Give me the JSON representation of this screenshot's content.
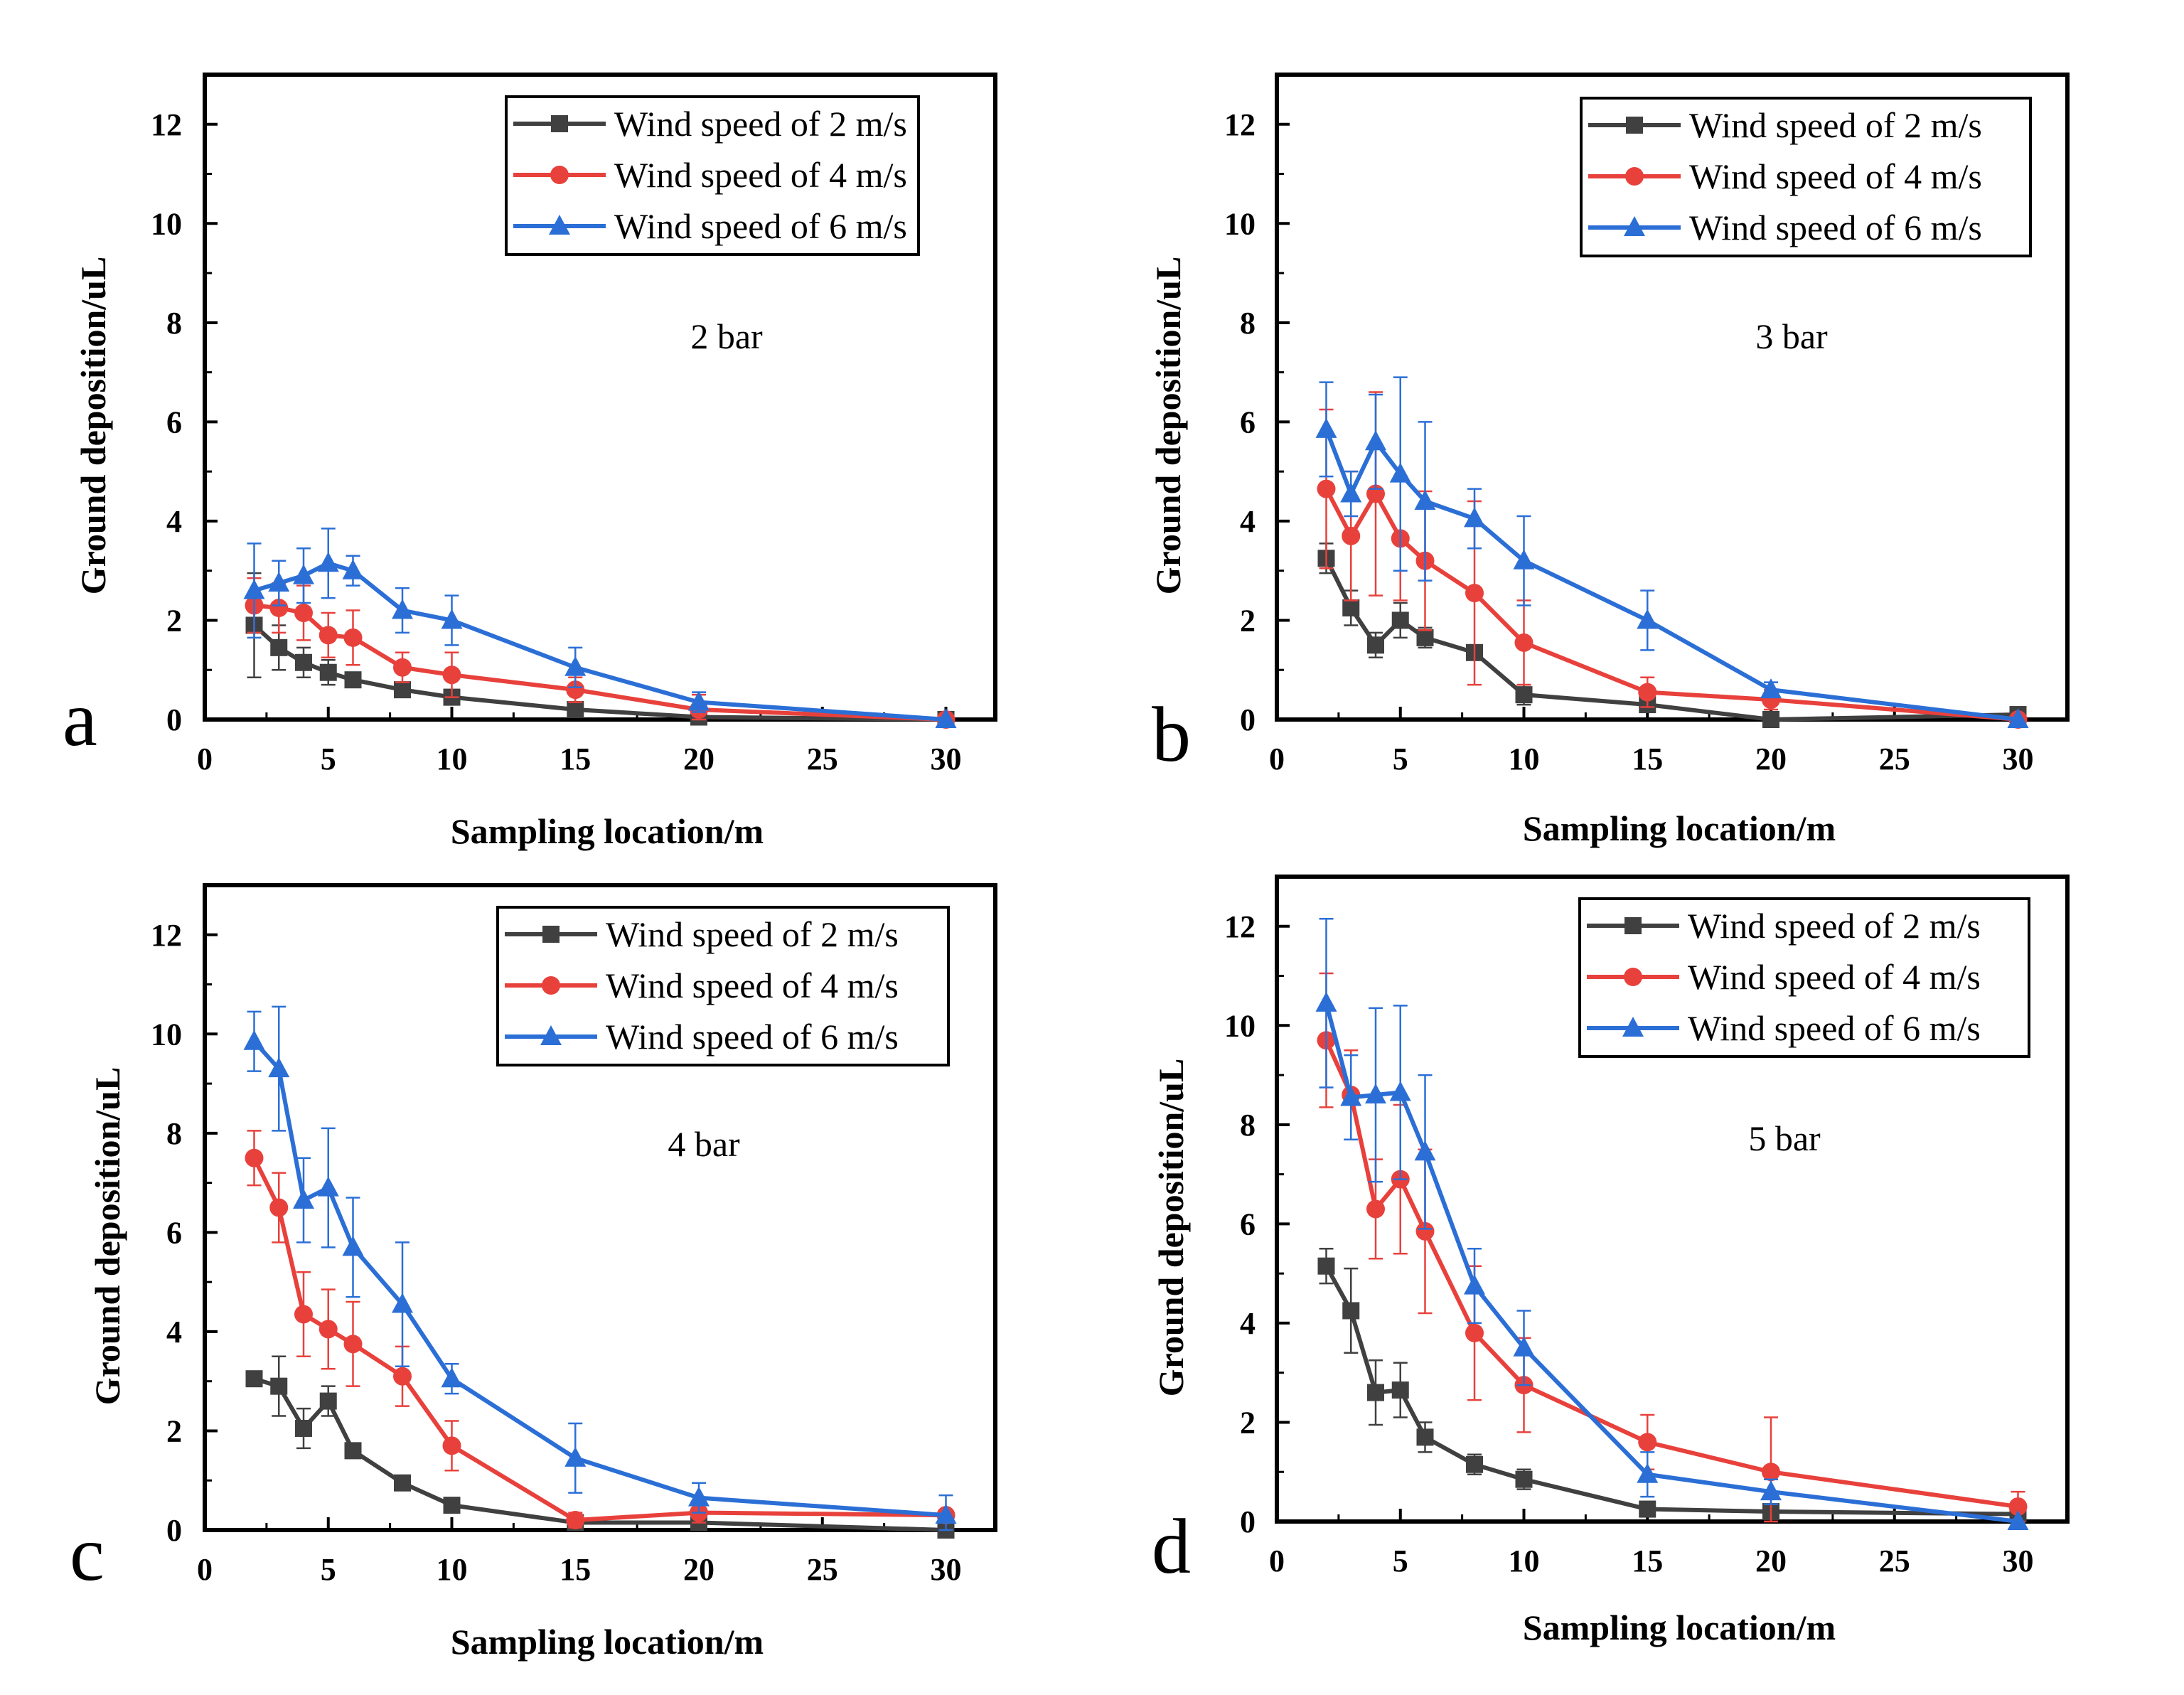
{
  "chart_data": [
    {
      "type": "line",
      "panel_label": "a",
      "annotation": "2 bar",
      "xlabel": "Sampling location/m",
      "ylabel": "Ground deposition/uL",
      "xlim": [
        0,
        32
      ],
      "ylim": [
        0,
        13
      ],
      "xticks": [
        0,
        5,
        10,
        15,
        20,
        25,
        30
      ],
      "yticks": [
        0,
        2,
        4,
        6,
        8,
        10,
        12
      ],
      "legend_position": "top-right",
      "series": [
        {
          "name": "Wind speed of 2 m/s",
          "color": "#404040",
          "marker": "square",
          "x": [
            2,
            3,
            4,
            5,
            6,
            8,
            10,
            15,
            20,
            30
          ],
          "y": [
            1.9,
            1.45,
            1.15,
            0.95,
            0.8,
            0.6,
            0.45,
            0.2,
            0.05,
            0.0
          ],
          "err": [
            1.05,
            0.45,
            0.3,
            0.25,
            0.15,
            0.15,
            0.15,
            0.1,
            0.05,
            0.0
          ]
        },
        {
          "name": "Wind speed of 4 m/s",
          "color": "#e8413c",
          "marker": "circle",
          "x": [
            2,
            3,
            4,
            5,
            6,
            8,
            10,
            15,
            20,
            30
          ],
          "y": [
            2.3,
            2.25,
            2.15,
            1.7,
            1.65,
            1.05,
            0.9,
            0.6,
            0.2,
            0.0
          ],
          "err": [
            0.55,
            0.5,
            0.55,
            0.45,
            0.55,
            0.3,
            0.45,
            0.25,
            0.3,
            0.05
          ]
        },
        {
          "name": "Wind speed of 6 m/s",
          "color": "#2b6fd6",
          "marker": "triangle",
          "x": [
            2,
            3,
            4,
            5,
            6,
            8,
            10,
            15,
            20,
            30
          ],
          "y": [
            2.6,
            2.75,
            2.9,
            3.15,
            3.0,
            2.2,
            2.0,
            1.05,
            0.35,
            0.0
          ],
          "err": [
            0.95,
            0.45,
            0.55,
            0.7,
            0.3,
            0.45,
            0.5,
            0.4,
            0.2,
            0.0
          ]
        }
      ]
    },
    {
      "type": "line",
      "panel_label": "b",
      "annotation": "3 bar",
      "xlabel": "Sampling location/m",
      "ylabel": "Ground deposition/uL",
      "xlim": [
        0,
        32
      ],
      "ylim": [
        0,
        13
      ],
      "xticks": [
        0,
        5,
        10,
        15,
        20,
        25,
        30
      ],
      "yticks": [
        0,
        2,
        4,
        6,
        8,
        10,
        12
      ],
      "legend_position": "top-right",
      "series": [
        {
          "name": "Wind speed of 2 m/s",
          "color": "#404040",
          "marker": "square",
          "x": [
            2,
            3,
            4,
            5,
            6,
            8,
            10,
            15,
            20,
            30
          ],
          "y": [
            3.25,
            2.25,
            1.5,
            2.0,
            1.65,
            1.35,
            0.5,
            0.3,
            0.0,
            0.1
          ],
          "err": [
            0.3,
            0.35,
            0.25,
            0.35,
            0.2,
            0.15,
            0.2,
            0.1,
            0.0,
            0.05
          ]
        },
        {
          "name": "Wind speed of 4 m/s",
          "color": "#e8413c",
          "marker": "circle",
          "x": [
            2,
            3,
            4,
            5,
            6,
            8,
            10,
            15,
            20,
            30
          ],
          "y": [
            4.65,
            3.7,
            4.55,
            3.65,
            3.2,
            2.55,
            1.55,
            0.55,
            0.4,
            0.0
          ],
          "err": [
            1.6,
            1.3,
            2.05,
            1.25,
            1.4,
            1.85,
            0.85,
            0.3,
            0.2,
            0.05
          ]
        },
        {
          "name": "Wind speed of 6 m/s",
          "color": "#2b6fd6",
          "marker": "triangle",
          "x": [
            2,
            3,
            4,
            5,
            6,
            8,
            10,
            15,
            20,
            30
          ],
          "y": [
            5.85,
            4.55,
            5.6,
            4.95,
            4.4,
            4.05,
            3.2,
            2.0,
            0.6,
            0.0
          ],
          "err": [
            0.95,
            0.45,
            0.95,
            1.95,
            1.6,
            0.6,
            0.9,
            0.6,
            0.15,
            0.0
          ]
        }
      ]
    },
    {
      "type": "line",
      "panel_label": "c",
      "annotation": "4 bar",
      "xlabel": "Sampling location/m",
      "ylabel": "Ground deposition/uL",
      "xlim": [
        0,
        32
      ],
      "ylim": [
        0,
        13
      ],
      "xticks": [
        0,
        5,
        10,
        15,
        20,
        25,
        30
      ],
      "yticks": [
        0,
        2,
        4,
        6,
        8,
        10,
        12
      ],
      "legend_position": "top-right",
      "series": [
        {
          "name": "Wind speed of 2 m/s",
          "color": "#404040",
          "marker": "square",
          "x": [
            2,
            3,
            4,
            5,
            6,
            8,
            10,
            15,
            20,
            30
          ],
          "y": [
            3.05,
            2.9,
            2.05,
            2.6,
            1.6,
            0.95,
            0.5,
            0.15,
            0.15,
            0.0
          ],
          "err": [
            0.15,
            0.6,
            0.4,
            0.3,
            0.15,
            0.1,
            0.1,
            0.05,
            0.1,
            0.0
          ]
        },
        {
          "name": "Wind speed of 4 m/s",
          "color": "#e8413c",
          "marker": "circle",
          "x": [
            2,
            3,
            4,
            5,
            6,
            8,
            10,
            15,
            20,
            30
          ],
          "y": [
            7.5,
            6.5,
            4.35,
            4.05,
            3.75,
            3.1,
            1.7,
            0.2,
            0.35,
            0.3
          ],
          "err": [
            0.55,
            0.7,
            0.85,
            0.8,
            0.85,
            0.6,
            0.5,
            0.15,
            0.2,
            0.1
          ]
        },
        {
          "name": "Wind speed of 6 m/s",
          "color": "#2b6fd6",
          "marker": "triangle",
          "x": [
            2,
            3,
            4,
            5,
            6,
            8,
            10,
            15,
            20,
            30
          ],
          "y": [
            9.85,
            9.3,
            6.65,
            6.9,
            5.7,
            4.55,
            3.05,
            1.45,
            0.65,
            0.3
          ],
          "err": [
            0.6,
            1.25,
            0.85,
            1.2,
            1.0,
            1.25,
            0.3,
            0.7,
            0.3,
            0.4
          ]
        }
      ]
    },
    {
      "type": "line",
      "panel_label": "d",
      "annotation": "5 bar",
      "xlabel": "Sampling location/m",
      "ylabel": "Ground deposition/uL",
      "xlim": [
        0,
        32
      ],
      "ylim": [
        0,
        13
      ],
      "xticks": [
        0,
        5,
        10,
        15,
        20,
        25,
        30
      ],
      "yticks": [
        0,
        2,
        4,
        6,
        8,
        10,
        12
      ],
      "legend_position": "top-right",
      "series": [
        {
          "name": "Wind speed of 2 m/s",
          "color": "#404040",
          "marker": "square",
          "x": [
            2,
            3,
            4,
            5,
            6,
            8,
            10,
            15,
            20,
            30
          ],
          "y": [
            5.15,
            4.25,
            2.6,
            2.65,
            1.7,
            1.15,
            0.85,
            0.25,
            0.2,
            0.15
          ],
          "err": [
            0.35,
            0.85,
            0.65,
            0.55,
            0.3,
            0.2,
            0.2,
            0.1,
            0.1,
            0.05
          ]
        },
        {
          "name": "Wind speed of 4 m/s",
          "color": "#e8413c",
          "marker": "circle",
          "x": [
            2,
            3,
            4,
            5,
            6,
            8,
            10,
            15,
            20,
            30
          ],
          "y": [
            9.7,
            8.6,
            6.3,
            6.9,
            5.85,
            3.8,
            2.75,
            1.6,
            1.0,
            0.3
          ],
          "err": [
            1.35,
            0.9,
            1.0,
            1.5,
            1.65,
            1.35,
            0.95,
            0.55,
            1.1,
            0.3
          ]
        },
        {
          "name": "Wind speed of 6 m/s",
          "color": "#2b6fd6",
          "marker": "triangle",
          "x": [
            2,
            3,
            4,
            5,
            6,
            8,
            10,
            15,
            20,
            30
          ],
          "y": [
            10.45,
            8.55,
            8.6,
            8.65,
            7.45,
            4.75,
            3.5,
            0.95,
            0.6,
            0.0
          ],
          "err": [
            1.7,
            0.85,
            1.75,
            1.75,
            1.55,
            0.75,
            0.75,
            0.45,
            0.25,
            0.0
          ]
        }
      ]
    }
  ]
}
